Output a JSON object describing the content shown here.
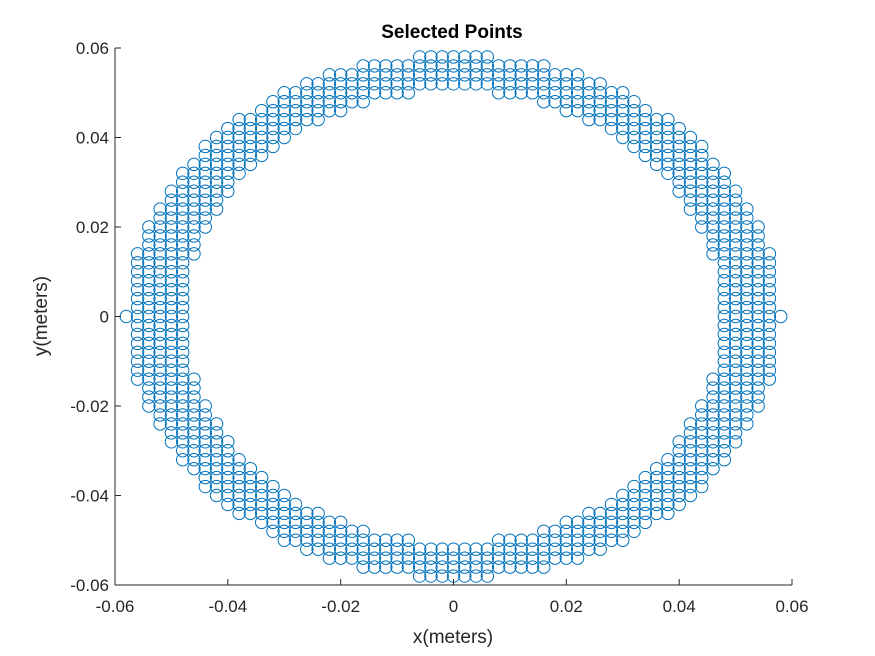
{
  "chart_data": {
    "type": "scatter",
    "title": "Selected Points",
    "xlabel": "x(meters)",
    "ylabel": "y(meters)",
    "xlim": [
      -0.06,
      0.06
    ],
    "ylim": [
      -0.06,
      0.06
    ],
    "xticks": [
      -0.06,
      -0.04,
      -0.02,
      0,
      0.02,
      0.04,
      0.06
    ],
    "yticks": [
      -0.06,
      -0.04,
      -0.02,
      0,
      0.02,
      0.04,
      0.06
    ],
    "xtick_labels": [
      "-0.06",
      "-0.04",
      "-0.02",
      "0",
      "0.02",
      "0.04",
      "0.06"
    ],
    "ytick_labels": [
      "-0.06",
      "-0.04",
      "-0.02",
      "0",
      "0.02",
      "0.04",
      "0.06"
    ],
    "grid": false,
    "marker": "open-circle",
    "series": [
      {
        "marker_color": "#0072bd",
        "grid_step": 0.002,
        "description_of_points": "all grid points with 0.002 m spacing lying in the elliptical ring between inner radii (0.0475, 0.0505) and outer radii (0.0580, 0.0585) around the origin",
        "region": {
          "center": [
            0,
            0
          ],
          "inner_radii": [
            0.0475,
            0.0505
          ],
          "outer_radii": [
            0.058,
            0.0585
          ]
        }
      }
    ]
  }
}
